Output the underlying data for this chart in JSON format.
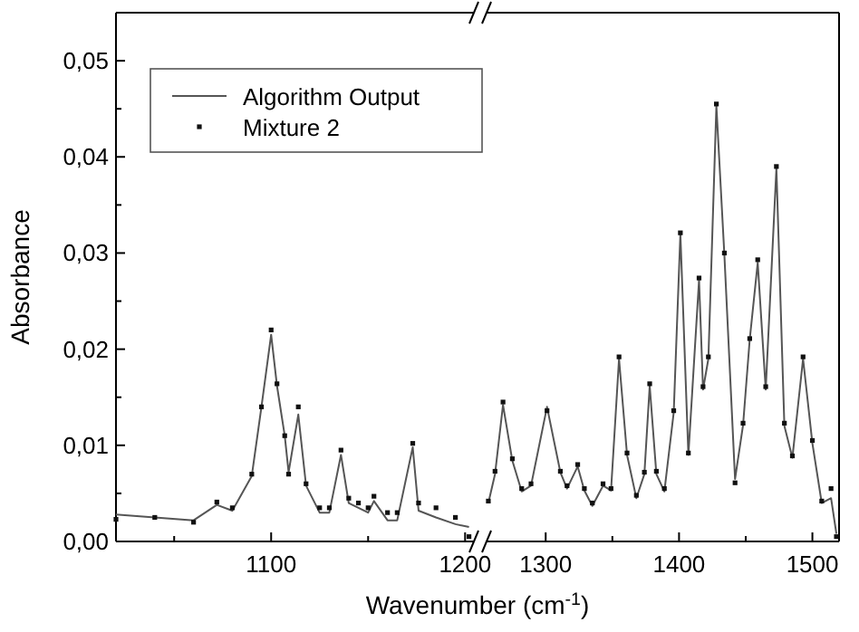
{
  "chart_data": [
    {
      "type": "line",
      "xlabel": "Wavenumber (cm$^{-1}$)",
      "ylabel": "Absorbance",
      "legend": "top left",
      "grid": false,
      "x": [
        1020,
        1040,
        1060,
        1072,
        1080,
        1090,
        1095,
        1100,
        1103,
        1107,
        1109,
        1114,
        1118,
        1125,
        1130,
        1136,
        1140,
        1145,
        1150,
        1153,
        1160,
        1165,
        1173,
        1176,
        1185,
        1195,
        1202
      ],
      "xlim": [
        1020,
        1205
      ],
      "xticks": [
        {
          "value": 1050,
          "label": null
        },
        1100,
        {
          "value": 1150,
          "label": null
        },
        1200
      ],
      "ylim": [
        0,
        0.055
      ],
      "yticks": [
        {
          "value": 0,
          "label": "0,00"
        },
        {
          "value": 0.005,
          "label": null
        },
        {
          "value": 0.01,
          "label": "0,01"
        },
        {
          "value": 0.015,
          "label": null
        },
        {
          "value": 0.02,
          "label": "0,02"
        },
        {
          "value": 0.025,
          "label": null
        },
        {
          "value": 0.03,
          "label": "0,03"
        },
        {
          "value": 0.035,
          "label": null
        },
        {
          "value": 0.04,
          "label": "0,04"
        },
        {
          "value": 0.045,
          "label": null
        },
        {
          "value": 0.05,
          "label": "0,05"
        }
      ],
      "series": [
        {
          "name": "Algorithm Output",
          "color": "#555555",
          "values": [
            0.0028,
            0.0025,
            0.0022,
            0.0038,
            0.0032,
            0.0068,
            0.014,
            0.0215,
            0.0162,
            0.011,
            0.0072,
            0.0132,
            0.0058,
            0.003,
            0.003,
            0.009,
            0.004,
            0.0035,
            0.003,
            0.0042,
            0.0022,
            0.0022,
            0.0098,
            0.0032,
            0.0025,
            0.0018,
            0.0015
          ]
        },
        {
          "name": "Mixture 2",
          "type": "scatter",
          "marker": "square",
          "color": "#111111",
          "values": [
            0.0023,
            0.0025,
            0.002,
            0.0041,
            0.0035,
            0.007,
            0.014,
            0.022,
            0.0164,
            0.011,
            0.007,
            0.014,
            0.006,
            0.0035,
            0.0035,
            0.0095,
            0.0045,
            0.004,
            0.0035,
            0.0047,
            0.003,
            0.003,
            0.0102,
            0.004,
            0.0035,
            0.0025,
            0.0005
          ]
        }
      ]
    },
    {
      "type": "line",
      "tick_labels": "x",
      "x": [
        1257,
        1262,
        1268,
        1275,
        1282,
        1289,
        1301,
        1311,
        1316,
        1324,
        1329,
        1335,
        1343,
        1349,
        1355,
        1361,
        1368,
        1374,
        1378,
        1383,
        1389,
        1396,
        1401,
        1407,
        1415,
        1418,
        1422,
        1428,
        1434,
        1442,
        1448,
        1453,
        1459,
        1465,
        1473,
        1479,
        1485,
        1493,
        1500,
        1507,
        1514,
        1518
      ],
      "xlim": [
        1255,
        1520
      ],
      "xticks": [
        1300,
        {
          "value": 1350,
          "label": null
        },
        1400,
        {
          "value": 1450,
          "label": null
        },
        1500
      ],
      "ylim": [
        0,
        0.055
      ],
      "series": [
        {
          "color": "#555555",
          "values": [
            0.004,
            0.007,
            0.0142,
            0.0084,
            0.0052,
            0.0058,
            0.014,
            0.0072,
            0.0055,
            0.0078,
            0.0053,
            0.0037,
            0.0058,
            0.0053,
            0.019,
            0.009,
            0.0045,
            0.007,
            0.0162,
            0.007,
            0.0052,
            0.0134,
            0.032,
            0.009,
            0.0272,
            0.0158,
            0.019,
            0.0453,
            0.0298,
            0.0065,
            0.0121,
            0.021,
            0.029,
            0.0158,
            0.0388,
            0.012,
            0.0087,
            0.019,
            0.0102,
            0.004,
            0.0045,
            0.0008
          ]
        },
        {
          "type": "scatter",
          "marker": "square",
          "color": "#111111",
          "values": [
            0.0042,
            0.0073,
            0.0145,
            0.0086,
            0.0055,
            0.006,
            0.0136,
            0.0073,
            0.0058,
            0.008,
            0.0055,
            0.004,
            0.006,
            0.0055,
            0.0192,
            0.0092,
            0.0048,
            0.0072,
            0.0164,
            0.0073,
            0.0055,
            0.0136,
            0.0321,
            0.0092,
            0.0274,
            0.0161,
            0.0192,
            0.0455,
            0.03,
            0.0061,
            0.0123,
            0.0211,
            0.0293,
            0.0161,
            0.039,
            0.0123,
            0.0089,
            0.0192,
            0.0105,
            0.0042,
            0.0055,
            0.0005
          ]
        }
      ]
    }
  ]
}
